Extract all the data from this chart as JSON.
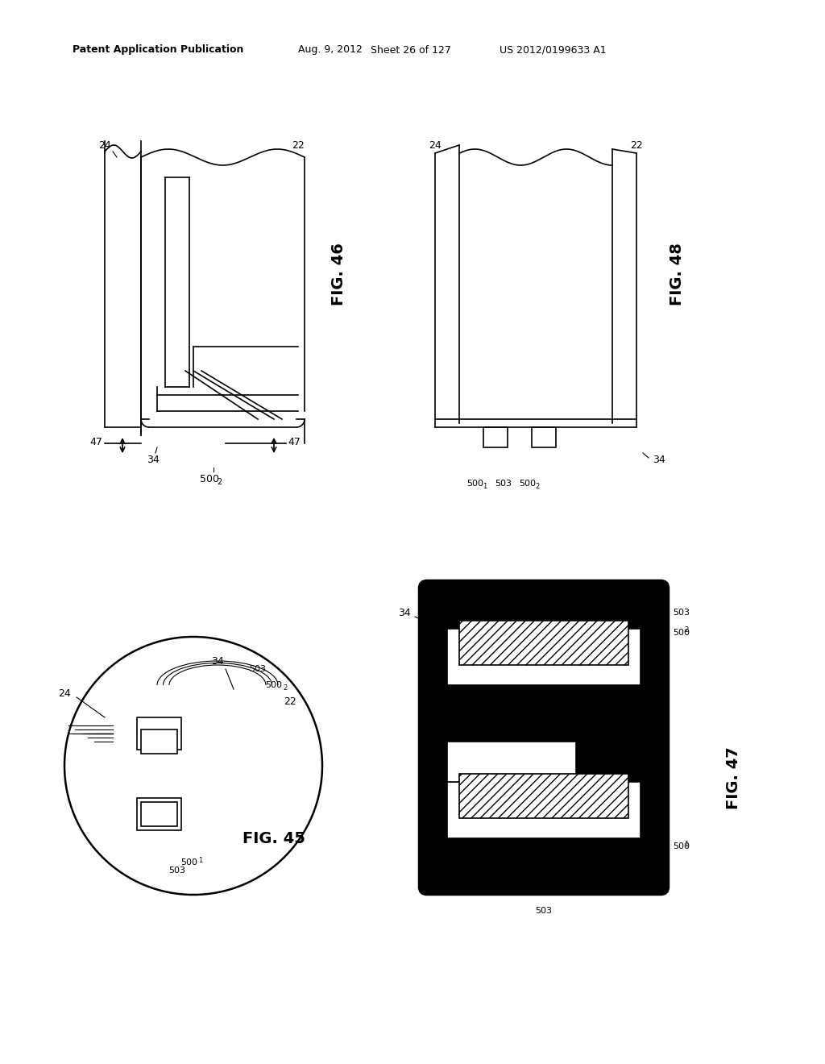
{
  "bg_color": "#ffffff",
  "header_text": "Patent Application Publication",
  "header_date": "Aug. 9, 2012",
  "header_sheet": "Sheet 26 of 127",
  "header_patent": "US 2012/0199633 A1",
  "fig46_label": "FIG. 46",
  "fig48_label": "FIG. 48",
  "fig45_label": "FIG. 45",
  "fig47_label": "FIG. 47"
}
